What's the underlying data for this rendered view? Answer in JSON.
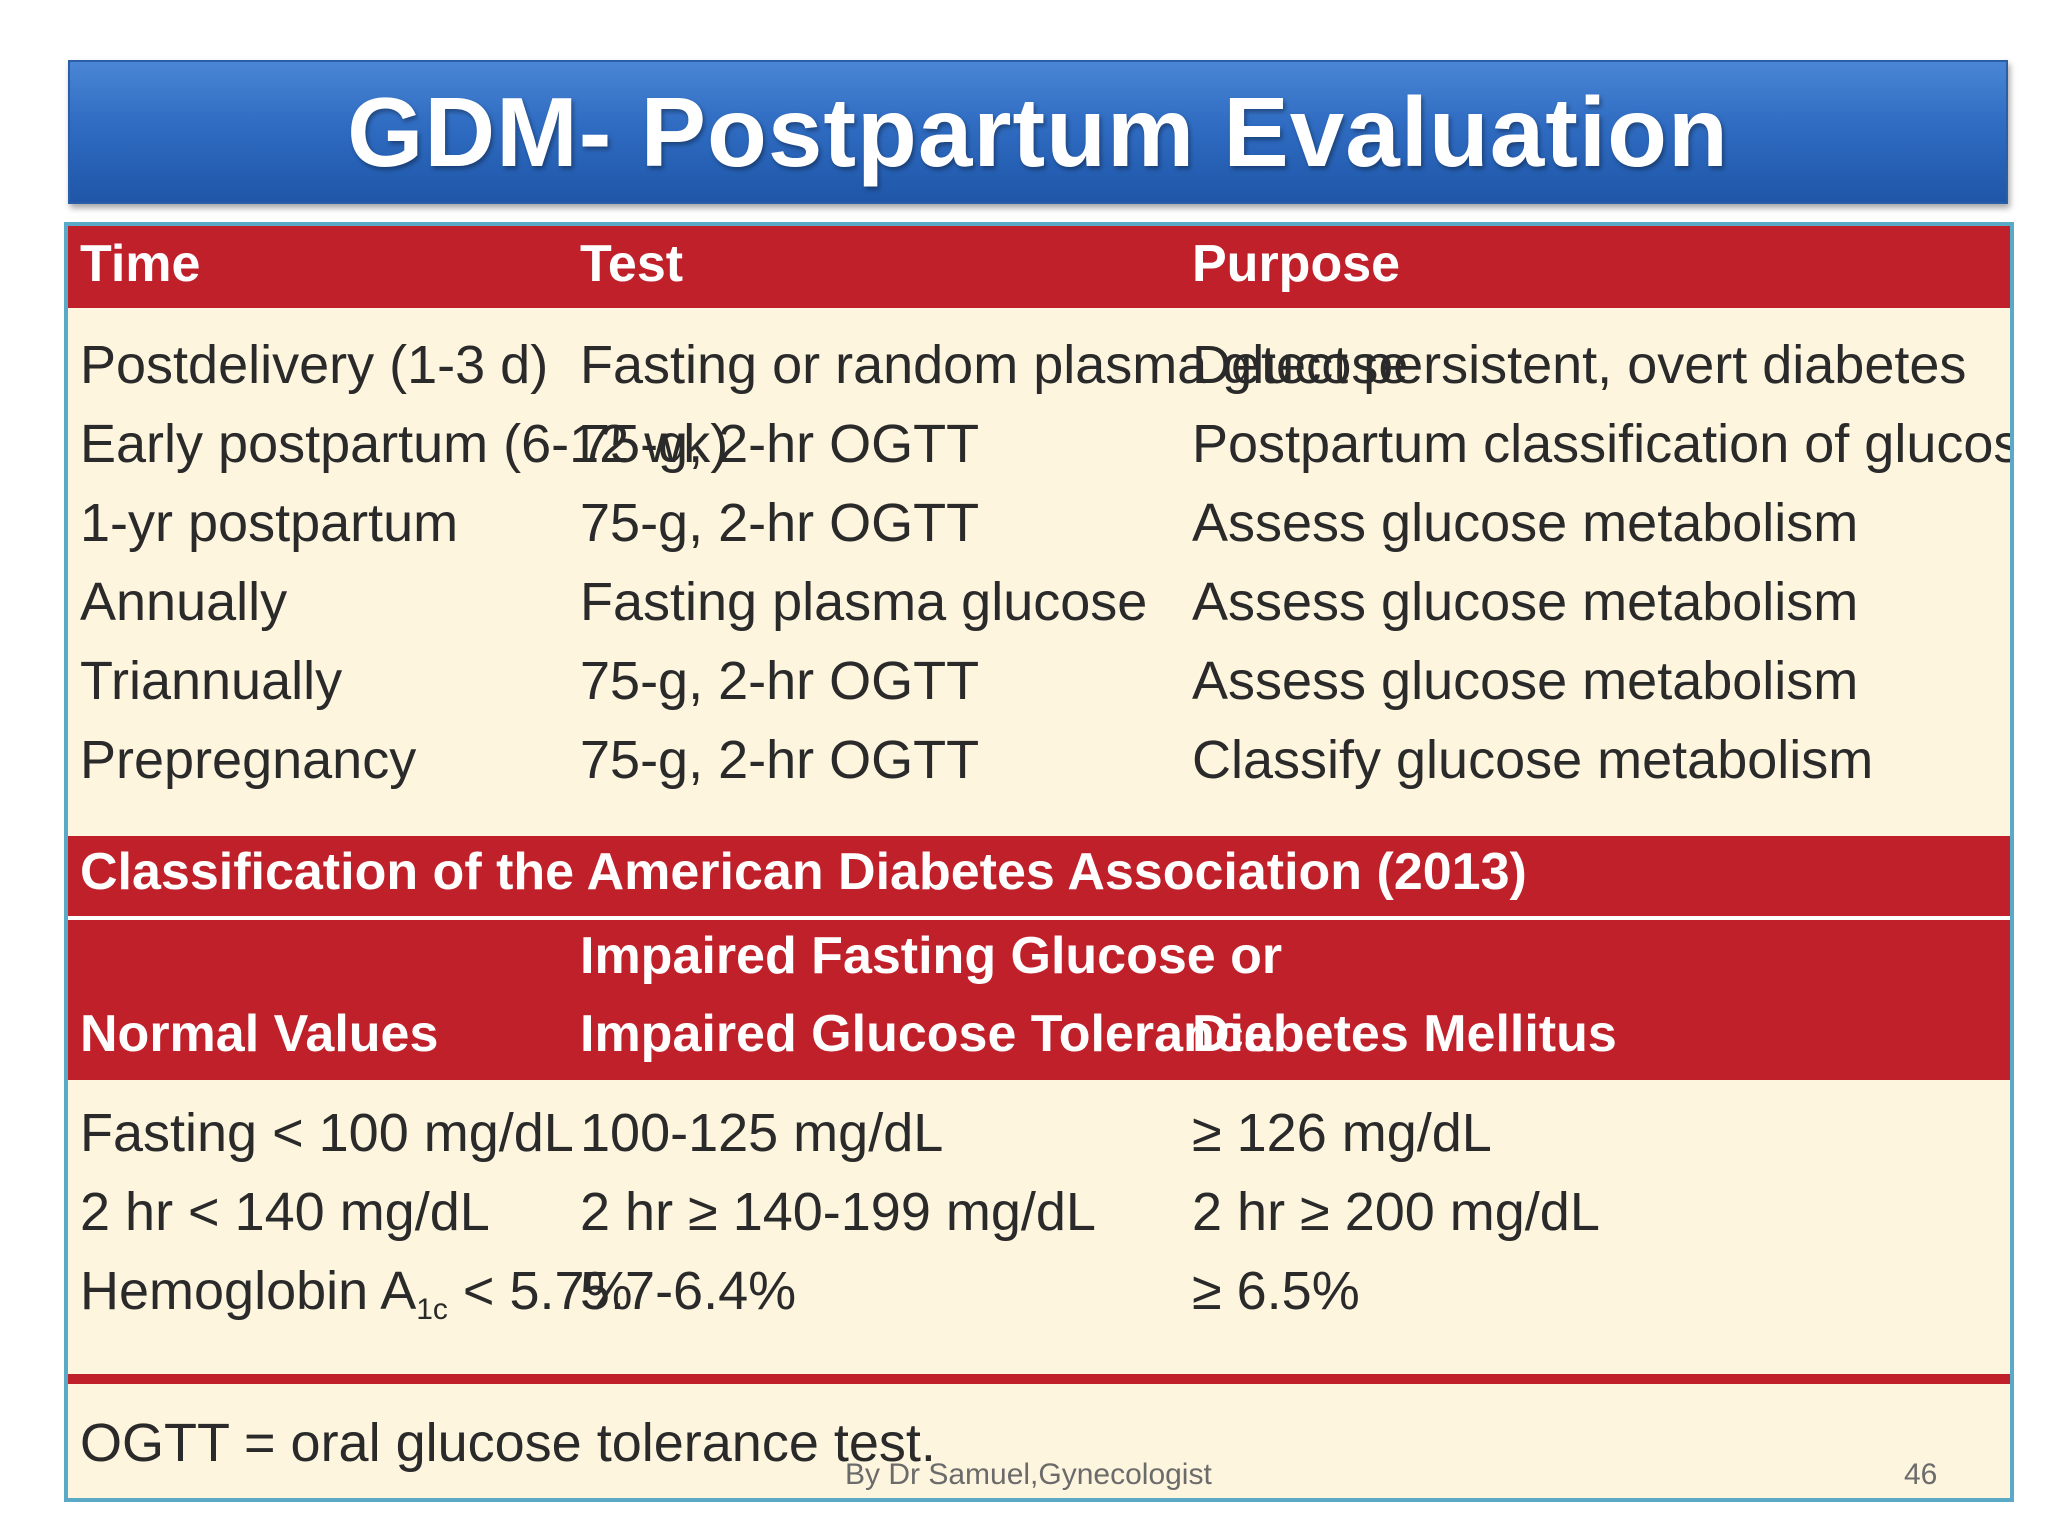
{
  "slide": {
    "title": "GDM- Postpartum Evaluation",
    "footer_author": "By Dr Samuel,Gynecologist",
    "page_number": "46"
  },
  "colors": {
    "title_banner": "#2f6cc2",
    "table_header": "#c0202a",
    "table_body": "#fdf5de",
    "frame_border": "#5aa9c6"
  },
  "schedule": {
    "headers": [
      "Time",
      "Test",
      "Purpose"
    ],
    "rows": [
      [
        "Postdelivery (1-3 d)",
        "Fasting or random plasma glucose",
        "Detect persistent, overt diabetes"
      ],
      [
        "Early postpartum (6-12 wk)",
        "75-g, 2-hr OGTT",
        "Postpartum classification of glucose metabolism"
      ],
      [
        "1-yr postpartum",
        "75-g, 2-hr OGTT",
        "Assess glucose metabolism"
      ],
      [
        "Annually",
        "Fasting plasma glucose",
        "Assess glucose metabolism"
      ],
      [
        "Triannually",
        "75-g, 2-hr OGTT",
        "Assess glucose metabolism"
      ],
      [
        "Prepregnancy",
        "75-g, 2-hr OGTT",
        "Classify glucose metabolism"
      ]
    ]
  },
  "classification": {
    "title": "Classification of the American Diabetes Association (2013)",
    "headers": {
      "normal": "Normal Values",
      "impaired_line1": "Impaired Fasting Glucose or",
      "impaired_line2": "Impaired Glucose Tolerance",
      "diabetes": "Diabetes Mellitus"
    },
    "rows": [
      [
        "Fasting < 100 mg/dL",
        "100-125 mg/dL",
        "≥ 126 mg/dL"
      ],
      [
        "2 hr < 140 mg/dL",
        "2 hr ≥ 140-199 mg/dL",
        "2 hr ≥ 200 mg/dL"
      ]
    ],
    "hba1c": {
      "label": "Hemoglobin A",
      "subscript": "1c",
      "normal_suffix": " < 5.7%",
      "impaired": "5.7-6.4%",
      "diabetes": "≥ 6.5%"
    }
  },
  "footnote": "OGTT = oral glucose tolerance test."
}
